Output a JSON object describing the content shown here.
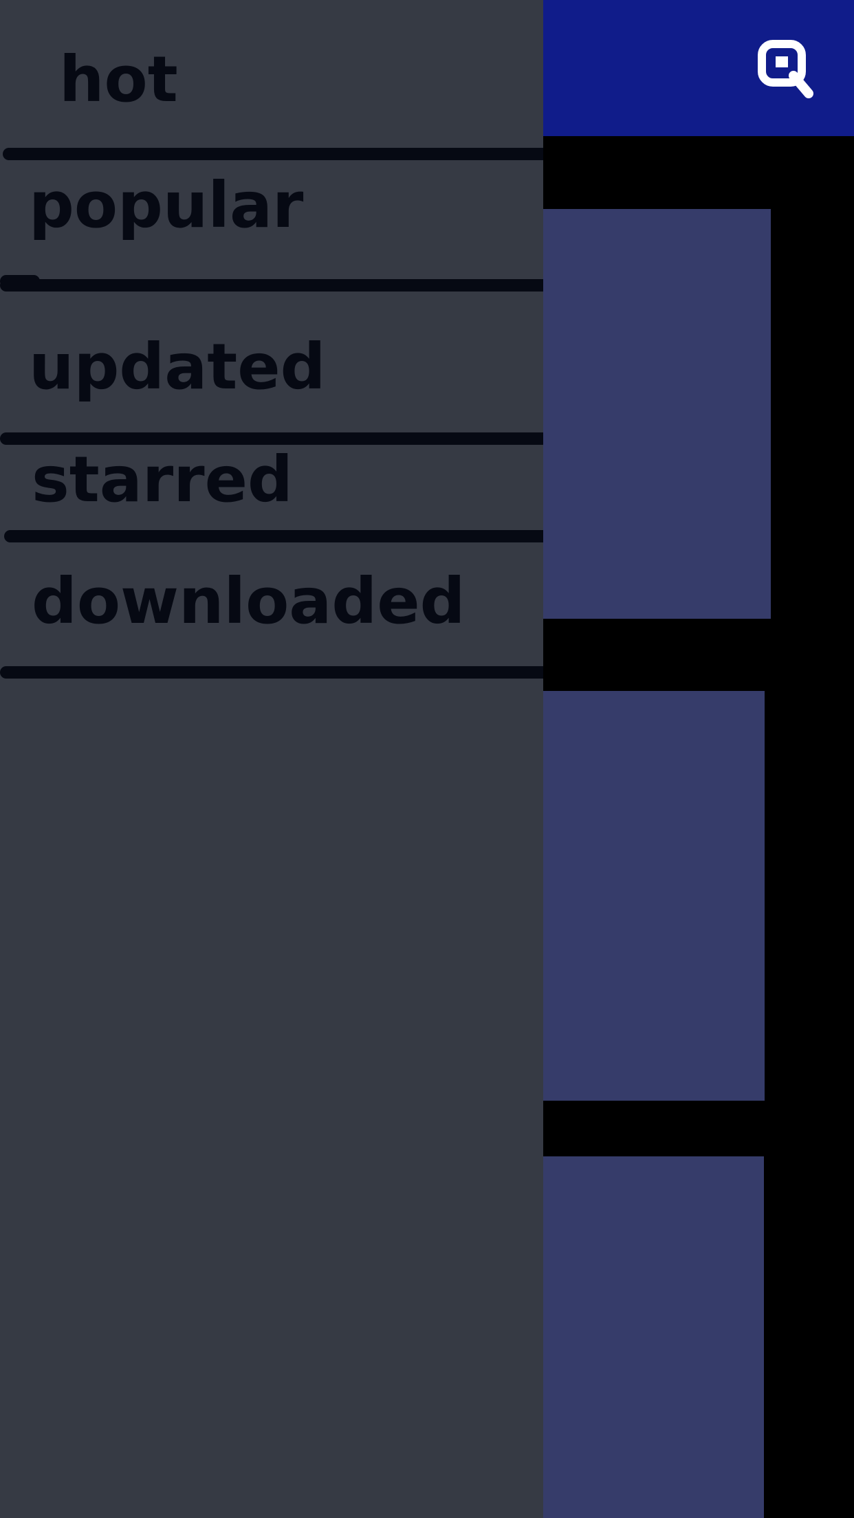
{
  "drawer": {
    "items": [
      {
        "label": "hot"
      },
      {
        "label": "popular"
      },
      {
        "label": "updated"
      },
      {
        "label": "starred"
      },
      {
        "label": "downloaded"
      }
    ]
  },
  "app_bar": {
    "icon": "search-icon"
  },
  "colors": {
    "drawer_background": "#363a44",
    "drawer_text": "#060913",
    "app_bar": "#101c8a",
    "card": "#363c6a",
    "screen_background": "#000000"
  }
}
